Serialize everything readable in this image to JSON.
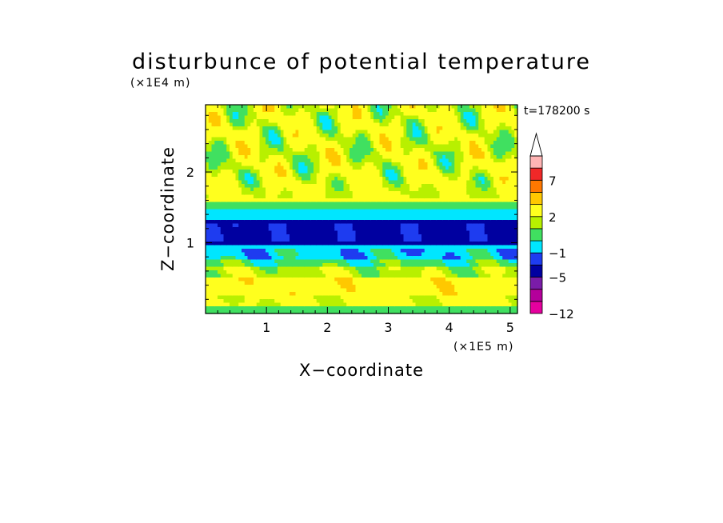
{
  "chart_data": {
    "type": "heatmap",
    "title": "disturbunce of potential temperature",
    "xlabel": "X−coordinate",
    "ylabel": "Z−coordinate",
    "x_unit": "(×1E5 m)",
    "y_unit": "(×1E4 m)",
    "time_label": "t=178200 s",
    "xlim": [
      0,
      5.12
    ],
    "ylim": [
      0,
      2.95
    ],
    "x_ticks": [
      1,
      2,
      3,
      4,
      5
    ],
    "y_ticks": [
      1,
      2
    ],
    "x_tick_labels": [
      "1",
      "2",
      "3",
      "4",
      "5"
    ],
    "y_tick_labels": [
      "1",
      "2"
    ],
    "colorbar": {
      "levels": [
        -12,
        -10,
        -8,
        -5,
        -3,
        -1,
        0,
        1,
        2,
        4,
        5,
        7,
        8,
        10
      ],
      "labels": [
        {
          "text": "−12",
          "value": -12
        },
        {
          "text": "−5",
          "value": -5
        },
        {
          "text": "−1",
          "value": -1
        },
        {
          "text": "2",
          "value": 2
        },
        {
          "text": "7",
          "value": 7
        }
      ],
      "colors": [
        "#e6009e",
        "#b4009b",
        "#7a1ca8",
        "#0000a0",
        "#1e3cf0",
        "#00e6ff",
        "#40e060",
        "#b8f000",
        "#ffff1e",
        "#ffc800",
        "#ff7800",
        "#f02828",
        "#ffb4b4"
      ],
      "extend_top": "#ffffff"
    },
    "field": {
      "description_hidden": false,
      "bands": [
        {
          "z": [
            0.0,
            0.08
          ],
          "value": 0.6
        },
        {
          "z": [
            0.08,
            0.25
          ],
          "value": 2.3
        },
        {
          "z": [
            0.25,
            0.5
          ],
          "value": 3.2
        },
        {
          "z": [
            0.5,
            0.68
          ],
          "value": 1.6
        },
        {
          "z": [
            0.68,
            0.78
          ],
          "value": 0.4
        },
        {
          "z": [
            0.78,
            0.95
          ],
          "value": -0.6
        },
        {
          "z": [
            0.95,
            1.32
          ],
          "value": -3.5
        },
        {
          "z": [
            1.32,
            1.45
          ],
          "value": -0.5
        },
        {
          "z": [
            1.45,
            1.6
          ],
          "value": 0.5
        },
        {
          "z": [
            1.6,
            2.95
          ],
          "value": 2.1
        }
      ]
    }
  }
}
